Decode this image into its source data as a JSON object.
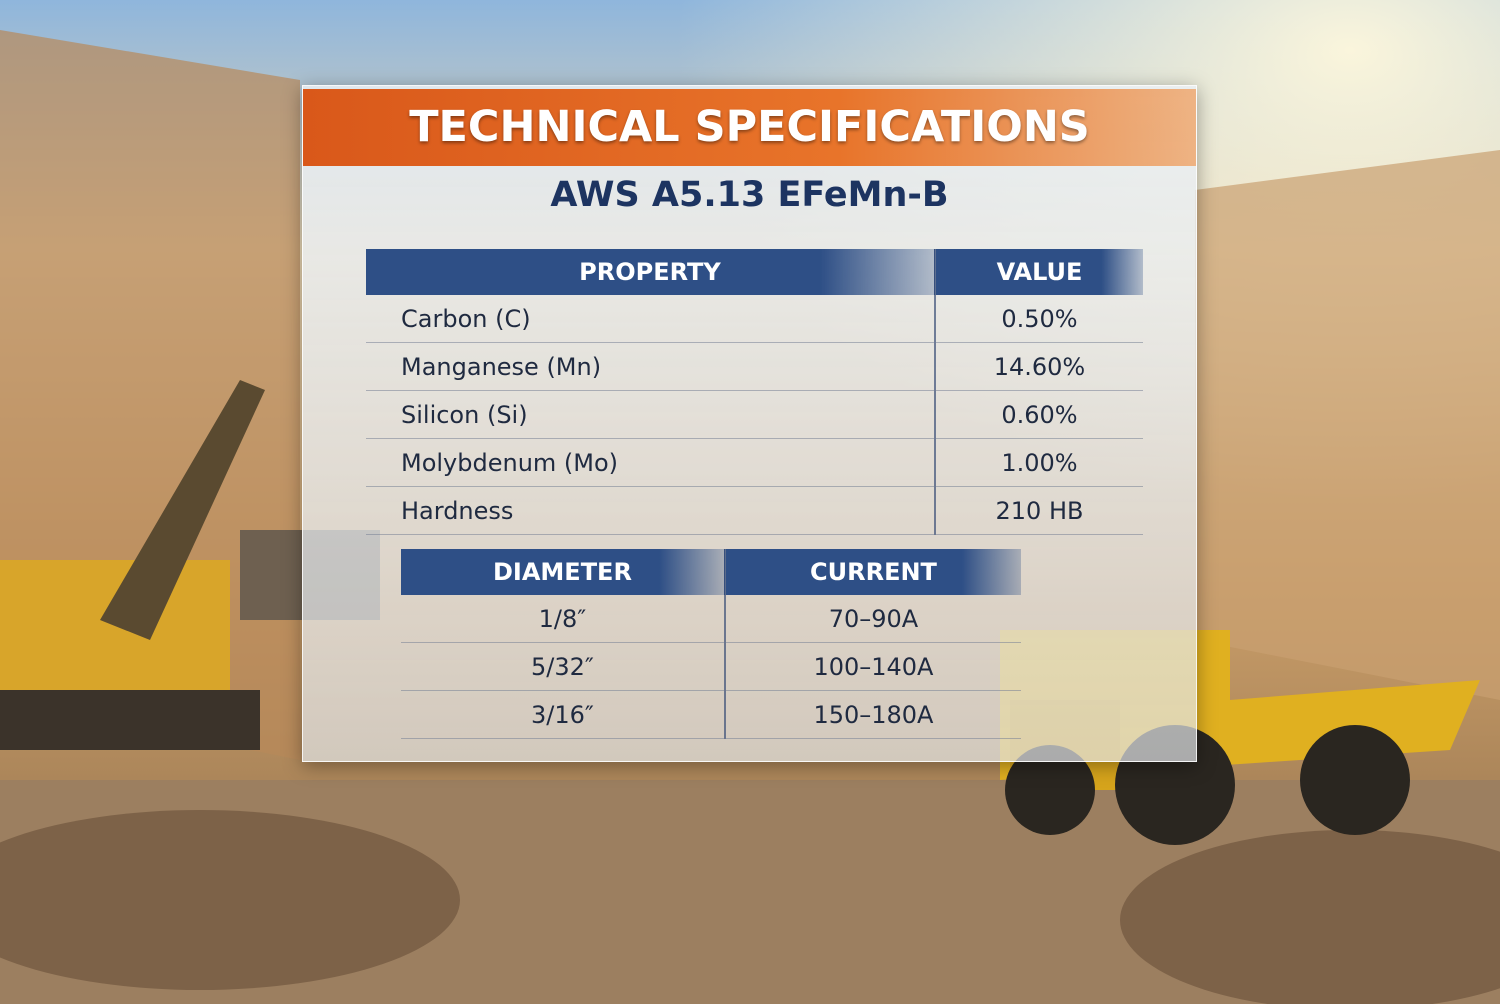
{
  "header": {
    "title": "TECHNICAL SPECIFICATIONS",
    "subtitle": "AWS A5.13 EFeMn-B"
  },
  "composition_table": {
    "columns": [
      "PROPERTY",
      "VALUE"
    ],
    "rows": [
      [
        "Carbon (C)",
        "0.50%"
      ],
      [
        "Manganese (Mn)",
        "14.60%"
      ],
      [
        "Silicon (Si)",
        "0.60%"
      ],
      [
        "Molybdenum (Mo)",
        "1.00%"
      ],
      [
        "Hardness",
        "210 HB"
      ]
    ]
  },
  "current_table": {
    "columns": [
      "DIAMETER",
      "CURRENT"
    ],
    "rows": [
      [
        "1/8″",
        "70–90A"
      ],
      [
        "5/32″",
        "100–140A"
      ],
      [
        "3/16″",
        "150–180A"
      ]
    ]
  }
}
